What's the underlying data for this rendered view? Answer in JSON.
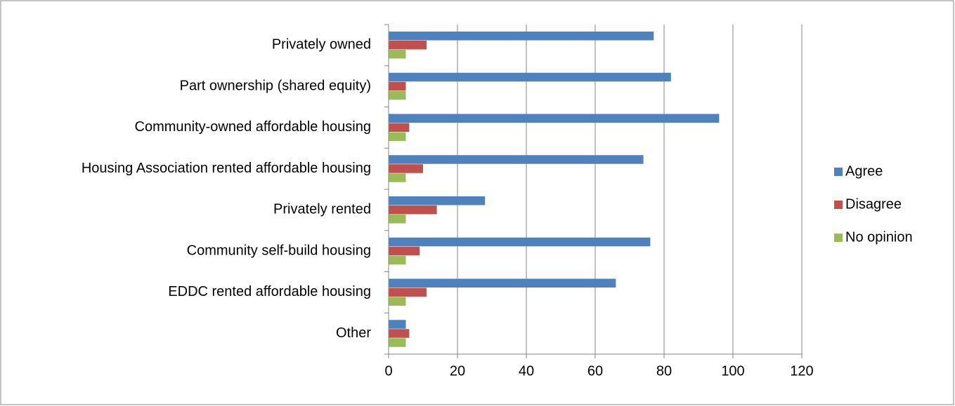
{
  "chart_data": {
    "type": "bar",
    "orientation": "horizontal",
    "categories": [
      "Privately owned",
      "Part ownership (shared equity)",
      "Community-owned affordable housing",
      "Housing Association rented affordable housing",
      "Privately rented",
      "Community self-build housing",
      "EDDC rented affordable housing",
      "Other"
    ],
    "series": [
      {
        "name": "Agree",
        "color": "#4f81bd",
        "values": [
          77,
          82,
          96,
          74,
          28,
          76,
          66,
          5
        ]
      },
      {
        "name": "Disagree",
        "color": "#c0504d",
        "values": [
          11,
          5,
          6,
          10,
          14,
          9,
          11,
          6
        ]
      },
      {
        "name": "No opinion",
        "color": "#9bbb59",
        "values": [
          5,
          5,
          5,
          5,
          5,
          5,
          5,
          5
        ]
      }
    ],
    "xlim": [
      0,
      120
    ],
    "xticks": [
      0,
      20,
      40,
      60,
      80,
      100,
      120
    ],
    "grid": true,
    "legend": "right"
  }
}
